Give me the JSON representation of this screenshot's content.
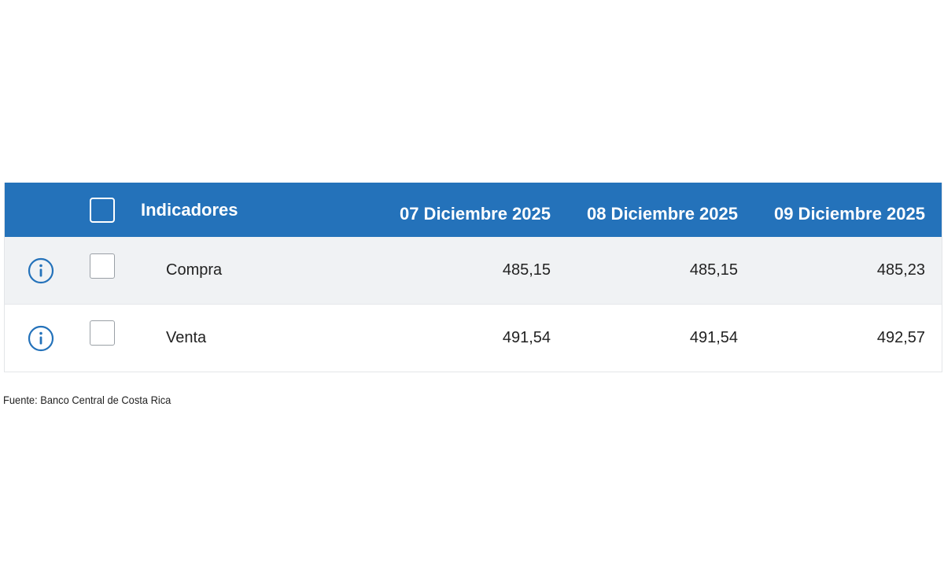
{
  "table": {
    "header": {
      "indicator_label": "Indicadores",
      "dates": [
        "07 Diciembre 2025",
        "08 Diciembre 2025",
        "09 Diciembre 2025"
      ]
    },
    "rows": [
      {
        "name": "Compra",
        "values": [
          "485,15",
          "485,15",
          "485,23"
        ]
      },
      {
        "name": "Venta",
        "values": [
          "491,54",
          "491,54",
          "492,57"
        ]
      }
    ]
  },
  "footer": {
    "source": "Fuente: Banco Central de Costa Rica"
  },
  "colors": {
    "header_bg": "#2472ba",
    "icon_blue": "#2472ba",
    "row_shade": "#f0f2f4"
  },
  "icons": {
    "row_info": "info-circle-icon"
  }
}
